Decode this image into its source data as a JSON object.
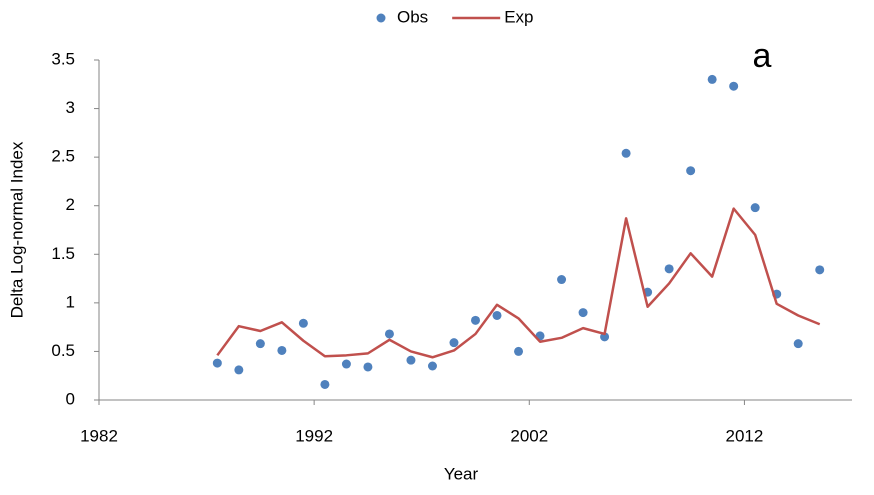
{
  "chart_data": {
    "type": "line",
    "x_label": "Year",
    "y_label": "Delta Log-normal Index",
    "annotation": "a",
    "x": [
      1987.5,
      1988.5,
      1989.5,
      1990.5,
      1991.5,
      1992.5,
      1993.5,
      1994.5,
      1995.5,
      1996.5,
      1997.5,
      1998.5,
      1999.5,
      2000.5,
      2001.5,
      2002.5,
      2003.5,
      2004.5,
      2005.5,
      2006.5,
      2007.5,
      2008.5,
      2009.5,
      2010.5,
      2011.5,
      2012.5,
      2013.5,
      2014.5,
      2015.5
    ],
    "series": [
      {
        "name": "Obs",
        "mode": "markers",
        "color": "#4f81bd",
        "values": [
          0.38,
          0.31,
          0.58,
          0.51,
          0.79,
          0.16,
          0.37,
          0.34,
          0.68,
          0.41,
          0.35,
          0.59,
          0.82,
          0.87,
          0.5,
          0.66,
          1.24,
          0.9,
          0.65,
          2.54,
          1.11,
          1.35,
          2.36,
          3.3,
          3.23,
          1.98,
          1.09,
          0.58,
          1.34
        ]
      },
      {
        "name": "Exp",
        "mode": "lines",
        "color": "#c0504d",
        "values": [
          0.46,
          0.76,
          0.71,
          0.8,
          0.61,
          0.45,
          0.46,
          0.48,
          0.62,
          0.5,
          0.44,
          0.51,
          0.68,
          0.98,
          0.84,
          0.6,
          0.64,
          0.74,
          0.68,
          1.87,
          0.96,
          1.2,
          1.51,
          1.27,
          1.97,
          1.7,
          0.99,
          0.87,
          0.78
        ]
      }
    ],
    "xlim": [
      1982,
      2017
    ],
    "xticks": [
      1982,
      1992,
      2002,
      2012
    ],
    "ylim": [
      0,
      3.5
    ],
    "yticks": [
      0,
      0.5,
      1,
      1.5,
      2,
      2.5,
      3,
      3.5
    ],
    "legend": "top"
  }
}
